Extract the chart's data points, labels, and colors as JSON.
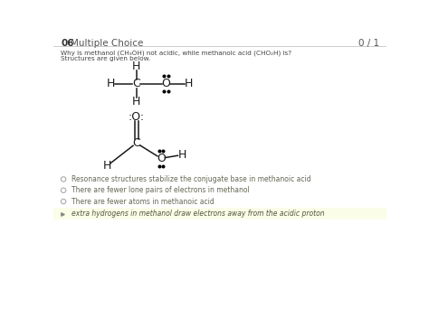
{
  "title_num": "06",
  "title_type": "Multiple Choice",
  "score": "0 / 1",
  "question": "Why is methanol (CH₃OH) not acidic, while methanoic acid (CHO₂H) is?",
  "subtitle": "Structures are given below.",
  "bg_color": "#ffffff",
  "highlight_color": "#fafde8",
  "options": [
    {
      "text": "Resonance structures stabilize the conjugate base in methanoic acid",
      "selected": false
    },
    {
      "text": "There are fewer lone pairs of electrons in methanol",
      "selected": false
    },
    {
      "text": "There are fewer atoms in methanoic acid",
      "selected": false
    },
    {
      "text": "extra hydrogens in methanol draw electrons away from the acidic proton",
      "selected": true
    }
  ]
}
